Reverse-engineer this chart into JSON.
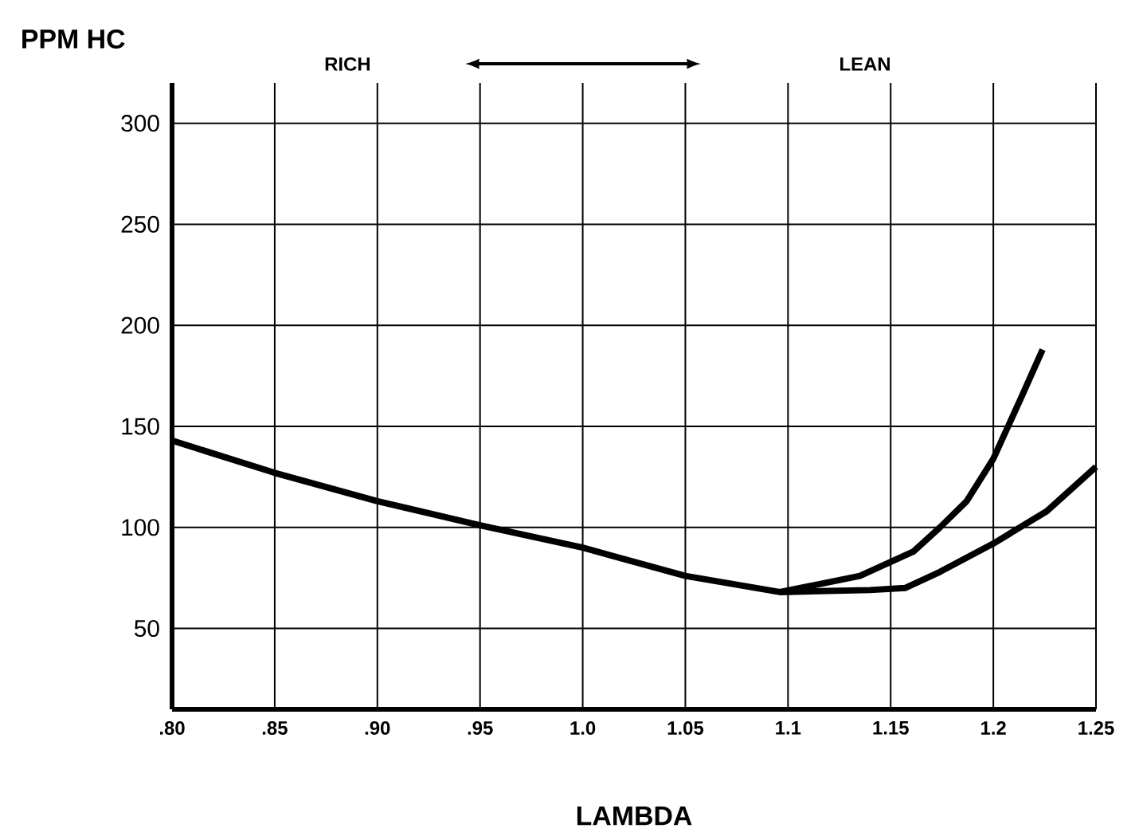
{
  "chart_data": {
    "type": "line",
    "xlabel": "LAMBDA",
    "ylabel": "PPM HC",
    "annotations": [
      "RICH",
      "LEAN"
    ],
    "series": [
      {
        "color": "#000000",
        "x": [
          0.8,
          0.85,
          0.9,
          0.95,
          1.0,
          1.05,
          1.096,
          1.135,
          1.161,
          1.174,
          1.187,
          1.2,
          1.213,
          1.224
        ],
        "values": [
          143,
          127,
          113,
          101,
          90,
          76,
          68,
          76,
          88,
          100,
          113,
          134,
          163,
          188
        ]
      },
      {
        "color": "#000000",
        "x": [
          1.096,
          1.14,
          1.157,
          1.174,
          1.2,
          1.226,
          1.25
        ],
        "values": [
          68,
          69,
          70,
          78,
          92,
          108,
          130
        ]
      }
    ],
    "xlim": [
      0.8,
      1.25
    ],
    "ylim": [
      10,
      320
    ],
    "xticks": [
      {
        "value": 0.8,
        "label": ".80"
      },
      {
        "value": 0.85,
        "label": ".85"
      },
      {
        "value": 0.9,
        "label": ".90"
      },
      {
        "value": 0.95,
        "label": ".95"
      },
      {
        "value": 1.0,
        "label": "1.0"
      },
      {
        "value": 1.05,
        "label": "1.05"
      },
      {
        "value": 1.1,
        "label": "1.1"
      },
      {
        "value": 1.15,
        "label": "1.15"
      },
      {
        "value": 1.2,
        "label": "1.2"
      },
      {
        "value": 1.25,
        "label": "1.25"
      }
    ],
    "yticks": [
      50,
      100,
      150,
      200,
      250,
      300
    ],
    "grid": true,
    "line_style": "solid",
    "marker": "none"
  }
}
